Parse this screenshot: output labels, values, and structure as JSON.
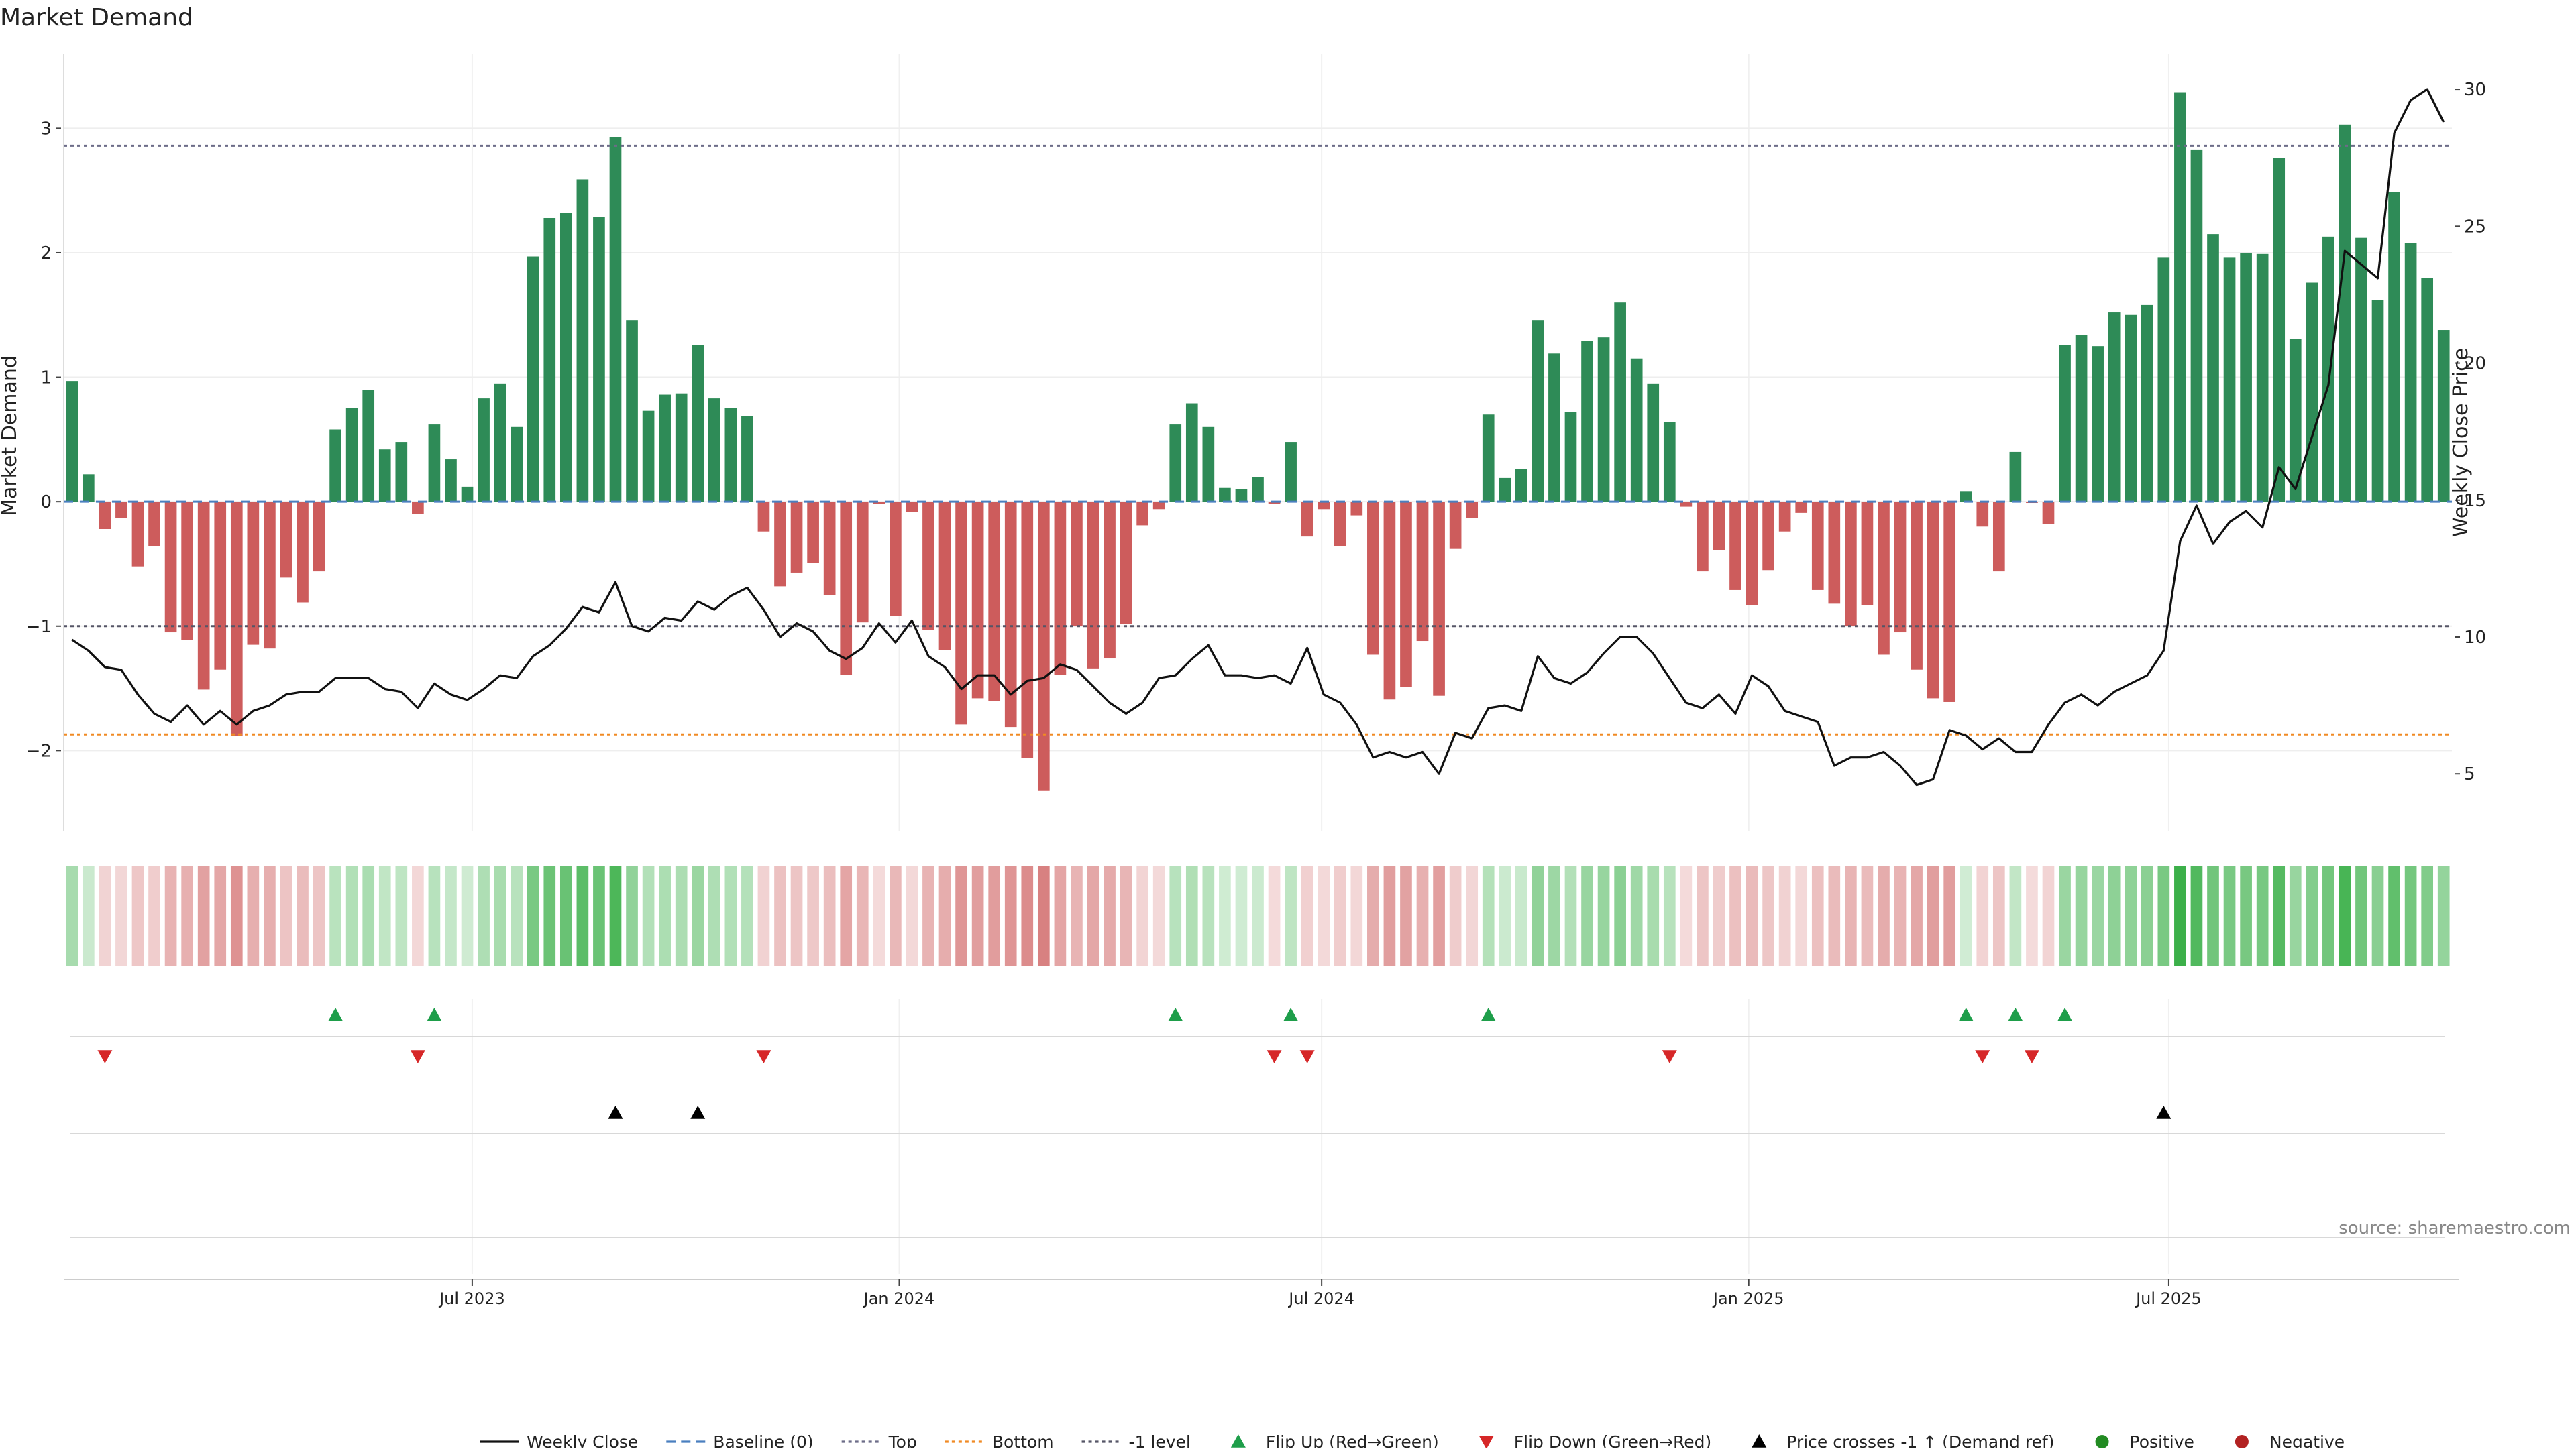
{
  "title": "Market Demand",
  "source_note": "source: sharemaestro.com",
  "chart_data": {
    "type": "bar",
    "title": "Market Demand",
    "ylabel": "Market Demand",
    "y2label": "Weekly Close Price",
    "ylim": [
      -2.65,
      3.6
    ],
    "y2lim": [
      2.9,
      31.3
    ],
    "yticks": [
      {
        "v": 3,
        "label": "3"
      },
      {
        "v": 2,
        "label": "2"
      },
      {
        "v": 1,
        "label": "1"
      },
      {
        "v": 0,
        "label": "0"
      },
      {
        "v": -1,
        "label": "−1"
      },
      {
        "v": -2,
        "label": "−2"
      }
    ],
    "y2ticks": [
      {
        "v": 30,
        "label": "30"
      },
      {
        "v": 25,
        "label": "25"
      },
      {
        "v": 20,
        "label": "20"
      },
      {
        "v": 15,
        "label": "15"
      },
      {
        "v": 10,
        "label": "10"
      },
      {
        "v": 5,
        "label": "5"
      }
    ],
    "x_start": "2023-01-06",
    "x_end": "2025-10-31",
    "xticks": [
      {
        "date": "2023-07-01",
        "label": "Jul 2023"
      },
      {
        "date": "2024-01-01",
        "label": "Jan 2024"
      },
      {
        "date": "2024-07-01",
        "label": "Jul 2024"
      },
      {
        "date": "2025-01-01",
        "label": "Jan 2025"
      },
      {
        "date": "2025-07-01",
        "label": "Jul 2025"
      }
    ],
    "reference_lines": [
      {
        "name": "Baseline (0)",
        "value": 0
      },
      {
        "name": "Top",
        "value": 2.86
      },
      {
        "name": "Bottom",
        "value": -1.87
      },
      {
        "name": "-1 level",
        "value": -1
      }
    ],
    "demand": [
      0.97,
      0.22,
      -0.22,
      -0.13,
      -0.52,
      -0.36,
      -1.05,
      -1.11,
      -1.51,
      -1.35,
      -1.88,
      -1.15,
      -1.18,
      -0.61,
      -0.81,
      -0.56,
      0.58,
      0.75,
      0.9,
      0.42,
      0.48,
      -0.1,
      0.62,
      0.34,
      0.12,
      0.83,
      0.95,
      0.6,
      1.97,
      2.28,
      2.32,
      2.59,
      2.29,
      2.93,
      1.46,
      0.73,
      0.86,
      0.87,
      1.26,
      0.83,
      0.75,
      0.69,
      -0.24,
      -0.68,
      -0.57,
      -0.49,
      -0.75,
      -1.39,
      -0.97,
      -0.02,
      -0.92,
      -0.08,
      -1.03,
      -1.19,
      -1.79,
      -1.58,
      -1.6,
      -1.81,
      -2.06,
      -2.32,
      -1.39,
      -1.0,
      -1.34,
      -1.26,
      -0.98,
      -0.19,
      -0.06,
      0.62,
      0.79,
      0.6,
      0.11,
      0.1,
      0.2,
      -0.02,
      0.48,
      -0.28,
      -0.06,
      -0.36,
      -0.11,
      -1.23,
      -1.59,
      -1.49,
      -1.12,
      -1.56,
      -0.38,
      -0.13,
      0.7,
      0.19,
      0.26,
      1.46,
      1.19,
      0.72,
      1.29,
      1.32,
      1.6,
      1.15,
      0.95,
      0.64,
      -0.04,
      -0.56,
      -0.39,
      -0.71,
      -0.83,
      -0.55,
      -0.24,
      -0.09,
      -0.71,
      -0.82,
      -1.0,
      -0.83,
      -1.23,
      -1.05,
      -1.35,
      -1.58,
      -1.61,
      0.08,
      -0.2,
      -0.56,
      0.4,
      -0.01,
      -0.18,
      1.26,
      1.34,
      1.25,
      1.52,
      1.5,
      1.58,
      1.96,
      3.29,
      2.83,
      2.15,
      1.96,
      2.0,
      1.99,
      2.76,
      1.31,
      1.76,
      2.13,
      3.03,
      2.12,
      1.62,
      2.49,
      2.08,
      1.8,
      1.38
    ],
    "weekly_close": [
      9.9,
      9.5,
      8.9,
      8.8,
      7.9,
      7.2,
      6.9,
      7.5,
      6.8,
      7.3,
      6.8,
      7.3,
      7.5,
      7.9,
      8.0,
      8.0,
      8.5,
      8.5,
      8.5,
      8.1,
      8.0,
      7.4,
      8.3,
      7.9,
      7.7,
      8.1,
      8.6,
      8.5,
      9.3,
      9.7,
      10.3,
      11.1,
      10.9,
      12.0,
      10.4,
      10.2,
      10.7,
      10.6,
      11.3,
      11.0,
      11.5,
      11.8,
      11.0,
      10.0,
      10.5,
      10.2,
      9.5,
      9.2,
      9.6,
      10.5,
      9.8,
      10.6,
      9.3,
      8.9,
      8.1,
      8.6,
      8.6,
      7.9,
      8.4,
      8.5,
      9.0,
      8.8,
      8.2,
      7.6,
      7.2,
      7.6,
      8.5,
      8.6,
      9.2,
      9.7,
      8.6,
      8.6,
      8.5,
      8.6,
      8.3,
      9.6,
      7.9,
      7.6,
      6.8,
      5.6,
      5.8,
      5.6,
      5.8,
      5.0,
      6.5,
      6.3,
      7.4,
      7.5,
      7.3,
      9.3,
      8.5,
      8.3,
      8.7,
      9.4,
      10.0,
      10.0,
      9.4,
      8.5,
      7.6,
      7.4,
      7.9,
      7.2,
      8.6,
      8.2,
      7.3,
      7.1,
      6.9,
      5.3,
      5.6,
      5.6,
      5.8,
      5.3,
      4.6,
      4.8,
      6.6,
      6.4,
      5.9,
      6.3,
      5.8,
      5.8,
      6.8,
      7.6,
      7.9,
      7.5,
      8.0,
      8.3,
      8.6,
      9.5,
      13.5,
      14.8,
      13.4,
      14.2,
      14.6,
      14.0,
      16.2,
      15.4,
      17.3,
      19.2,
      24.1,
      23.6,
      23.1,
      28.4,
      29.6,
      30.0,
      28.8
    ],
    "heat_strip_note": "per-week tile shaded green (positive) or red (negative) by demand strength",
    "flip_up_weeks": [
      16,
      22,
      67,
      74,
      86,
      115,
      118,
      121
    ],
    "flip_down_weeks": [
      2,
      21,
      42,
      73,
      75,
      97,
      116,
      119
    ],
    "price_cross_weeks": [
      33,
      38,
      127
    ],
    "colors": {
      "positive_bar": "#2e8b57",
      "negative_bar": "#cd5c5c",
      "positive_tile": "#3cb04a",
      "negative_tile": "#cd5c5c",
      "price_line": "#111111",
      "baseline": "#4a7fbf",
      "top": "#6c6c88",
      "bottom": "#f08a24",
      "minus1": "#555566",
      "flip_up": "#1e9e4a",
      "flip_down": "#d62728",
      "cross": "#000000",
      "dot_positive": "#228b22",
      "dot_negative": "#b22222"
    },
    "legend": [
      {
        "label": "Weekly Close",
        "kind": "line",
        "color": "#111111"
      },
      {
        "label": "Baseline (0)",
        "kind": "dashed",
        "color": "#4a7fbf"
      },
      {
        "label": "Top",
        "kind": "dotted",
        "color": "#6c6c88"
      },
      {
        "label": "Bottom",
        "kind": "dotted",
        "color": "#f08a24"
      },
      {
        "label": "-1 level",
        "kind": "dotted",
        "color": "#555566"
      },
      {
        "label": "Flip Up (Red→Green)",
        "kind": "up",
        "color": "#1e9e4a"
      },
      {
        "label": "Flip Down (Green→Red)",
        "kind": "down",
        "color": "#d62728"
      },
      {
        "label": "Price crosses -1 ↑ (Demand ref)",
        "kind": "up",
        "color": "#000000"
      },
      {
        "label": "Positive",
        "kind": "dot",
        "color": "#228b22"
      },
      {
        "label": "Negative",
        "kind": "dot",
        "color": "#b22222"
      }
    ]
  }
}
